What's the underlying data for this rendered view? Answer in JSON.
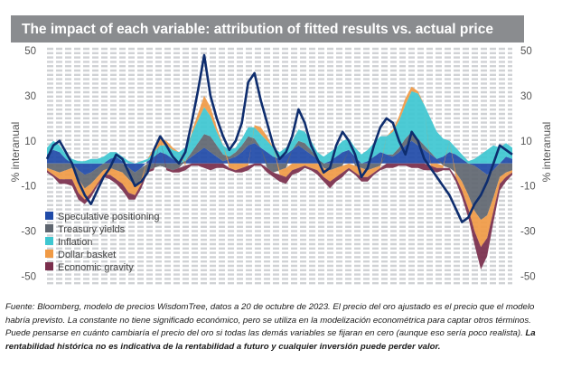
{
  "chart_data": {
    "type": "area",
    "title": "The impact of each variable: attribution of fitted results vs. actual price",
    "ylabel_left": "% interanual",
    "ylabel_right": "% interanual",
    "ylim": [
      -55,
      52
    ],
    "yticks": [
      50,
      30,
      10,
      -10,
      -30,
      -50
    ],
    "grid": true,
    "legend": {
      "position": "bottom-left",
      "entries": [
        {
          "name": "Speculative positioning",
          "color": "#1f4aa8"
        },
        {
          "name": "Treasury yields",
          "color": "#5f6670"
        },
        {
          "name": "Inflation",
          "color": "#3ec7d1"
        },
        {
          "name": "Dollar basket",
          "color": "#f09a45"
        },
        {
          "name": "Economic gravity",
          "color": "#7a2e4c"
        }
      ]
    },
    "series": [
      {
        "name": "Speculative positioning",
        "color": "#1f4aa8",
        "values": [
          4,
          6,
          5,
          2,
          0,
          -3,
          -5,
          -4,
          -2,
          0,
          2,
          3,
          1,
          -2,
          -4,
          -2,
          1,
          3,
          5,
          4,
          2,
          0,
          1,
          3,
          5,
          7,
          5,
          3,
          1,
          2,
          3,
          5,
          8,
          9,
          7,
          5,
          3,
          2,
          4,
          6,
          8,
          6,
          4,
          2,
          0,
          1,
          3,
          5,
          6,
          3,
          0,
          1,
          3,
          5,
          4,
          3,
          5,
          8,
          10,
          8,
          6,
          4,
          2,
          3,
          5,
          4,
          2,
          0,
          -1,
          -3,
          -5,
          -3,
          0,
          3,
          2
        ]
      },
      {
        "name": "Treasury yields",
        "color": "#5f6670",
        "values": [
          -2,
          -3,
          -4,
          -3,
          -2,
          -4,
          -6,
          -5,
          -4,
          -3,
          -2,
          -3,
          -4,
          -5,
          -6,
          -5,
          -3,
          -2,
          -1,
          -2,
          -3,
          -2,
          0,
          2,
          4,
          6,
          7,
          5,
          3,
          1,
          2,
          3,
          4,
          2,
          0,
          -2,
          -4,
          -3,
          -2,
          0,
          2,
          3,
          2,
          0,
          -2,
          -3,
          -2,
          -1,
          0,
          -1,
          -2,
          -3,
          -2,
          -1,
          0,
          1,
          2,
          3,
          4,
          3,
          2,
          1,
          0,
          -1,
          -2,
          -4,
          -8,
          -14,
          -20,
          -22,
          -18,
          -12,
          -6,
          -4,
          -3
        ]
      },
      {
        "name": "Inflation",
        "color": "#3ec7d1",
        "values": [
          3,
          4,
          3,
          2,
          2,
          1,
          1,
          2,
          2,
          3,
          3,
          2,
          2,
          1,
          0,
          1,
          1,
          2,
          3,
          4,
          4,
          5,
          6,
          8,
          10,
          12,
          9,
          6,
          4,
          3,
          2,
          3,
          4,
          5,
          6,
          5,
          4,
          3,
          3,
          4,
          5,
          5,
          4,
          3,
          3,
          4,
          4,
          5,
          5,
          4,
          4,
          5,
          6,
          7,
          8,
          10,
          12,
          15,
          18,
          20,
          18,
          15,
          12,
          8,
          5,
          3,
          2,
          1,
          2,
          4,
          6,
          8,
          7,
          6,
          5
        ]
      },
      {
        "name": "Dollar basket",
        "color": "#f09a45",
        "values": [
          -1,
          -2,
          -3,
          -4,
          -5,
          -6,
          -5,
          -4,
          -3,
          -2,
          -3,
          -4,
          -5,
          -6,
          -4,
          -2,
          0,
          2,
          3,
          2,
          1,
          0,
          -1,
          1,
          3,
          5,
          4,
          2,
          0,
          -2,
          -3,
          -2,
          -1,
          1,
          3,
          2,
          0,
          -2,
          -4,
          -3,
          -2,
          -1,
          -2,
          -3,
          -4,
          -5,
          -4,
          -3,
          -2,
          -3,
          -4,
          -3,
          -2,
          -1,
          0,
          1,
          2,
          3,
          2,
          1,
          0,
          -1,
          -2,
          -1,
          0,
          -2,
          -4,
          -6,
          -9,
          -12,
          -10,
          -6,
          -3,
          -2,
          -1
        ]
      },
      {
        "name": "Economic gravity",
        "color": "#7a2e4c",
        "values": [
          -1,
          -1,
          -2,
          -2,
          -3,
          -3,
          -2,
          -2,
          -1,
          -1,
          -2,
          -2,
          -3,
          -3,
          -2,
          -2,
          -1,
          -1,
          0,
          -1,
          -1,
          -2,
          -2,
          -1,
          -1,
          -2,
          -3,
          -2,
          -2,
          -1,
          -1,
          -2,
          -2,
          -1,
          -1,
          -2,
          -2,
          -3,
          -3,
          -2,
          -2,
          -1,
          -1,
          -2,
          -2,
          -3,
          -2,
          -2,
          -1,
          -1,
          -2,
          -2,
          -1,
          -1,
          -2,
          -2,
          -1,
          -1,
          -2,
          -2,
          -3,
          -2,
          -2,
          -1,
          -1,
          -2,
          -3,
          -4,
          -6,
          -10,
          -8,
          -5,
          -3,
          -2,
          -1
        ]
      }
    ],
    "line_series": {
      "name": "Actual price",
      "color": "#0e2d6e",
      "values": [
        2,
        8,
        10,
        5,
        0,
        -8,
        -14,
        -18,
        -12,
        -6,
        -2,
        4,
        2,
        -4,
        -10,
        -8,
        -4,
        6,
        12,
        8,
        3,
        0,
        5,
        18,
        32,
        48,
        30,
        20,
        12,
        6,
        10,
        18,
        36,
        40,
        28,
        18,
        8,
        2,
        5,
        12,
        24,
        18,
        8,
        2,
        -4,
        -2,
        8,
        14,
        10,
        4,
        -6,
        -2,
        8,
        16,
        20,
        18,
        10,
        4,
        14,
        10,
        2,
        -2,
        -6,
        -10,
        -14,
        -20,
        -26,
        -24,
        -18,
        -14,
        -8,
        0,
        8,
        6,
        4
      ]
    }
  },
  "caption": {
    "text_regular": "Fuente: Bloomberg, modelo de precios WisdomTree, datos a 20 de octubre de 2023. El precio del oro ajustado es el precio que el modelo habría previsto. La constante no tiene significado económico, pero se utiliza en la modelización econométrica para captar otros términos. Puede pensarse en cuánto cambiaría el precio del oro si todas las demás variables se fijaran en cero (aunque eso sería poco realista).",
    "text_bold": "La rentabilidad histórica no es indicativa de la rentabilidad a futuro y cualquier inversión puede perder valor."
  }
}
